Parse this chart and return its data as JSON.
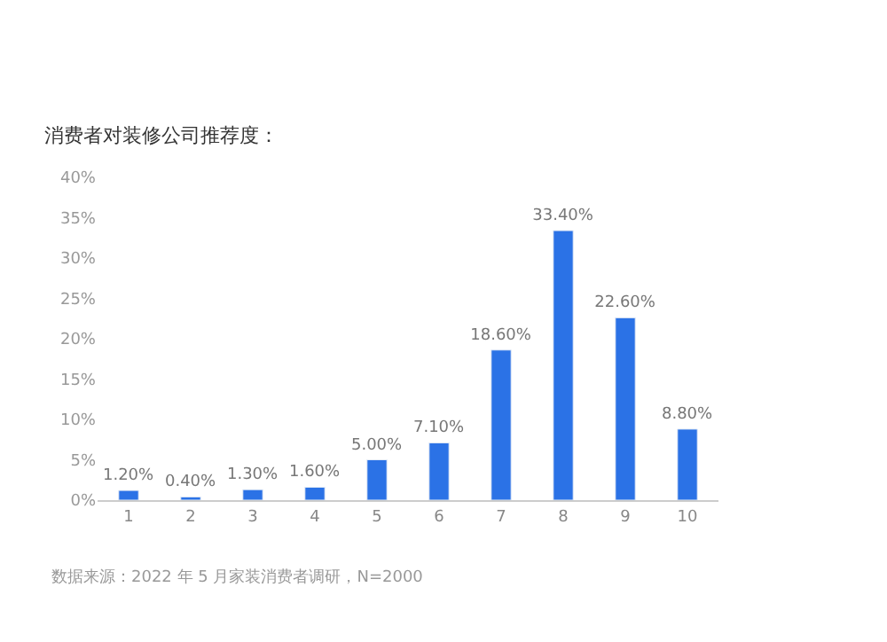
{
  "chart_data": {
    "type": "bar",
    "title": "消费者对装修公司推荐度：",
    "categories": [
      "1",
      "2",
      "3",
      "4",
      "5",
      "6",
      "7",
      "8",
      "9",
      "10"
    ],
    "values": [
      1.2,
      0.4,
      1.3,
      1.6,
      5.0,
      7.1,
      18.6,
      33.4,
      22.6,
      8.8
    ],
    "value_labels": [
      "1.20%",
      "0.40%",
      "1.30%",
      "1.60%",
      "5.00%",
      "7.10%",
      "18.60%",
      "33.40%",
      "22.60%",
      "8.80%"
    ],
    "color": "#2b72e6",
    "ylim": [
      0,
      40
    ],
    "yticks": [
      {
        "value": 0,
        "label": "0%"
      },
      {
        "value": 5,
        "label": "5%"
      },
      {
        "value": 10,
        "label": "10%"
      },
      {
        "value": 15,
        "label": "15%"
      },
      {
        "value": 20,
        "label": "20%"
      },
      {
        "value": 25,
        "label": "25%"
      },
      {
        "value": 30,
        "label": "30%"
      },
      {
        "value": 35,
        "label": "35%"
      },
      {
        "value": 40,
        "label": "40%"
      }
    ],
    "annotations": [
      "数据来源：2022 年 5 月家装消费者调研，N=2000"
    ]
  }
}
